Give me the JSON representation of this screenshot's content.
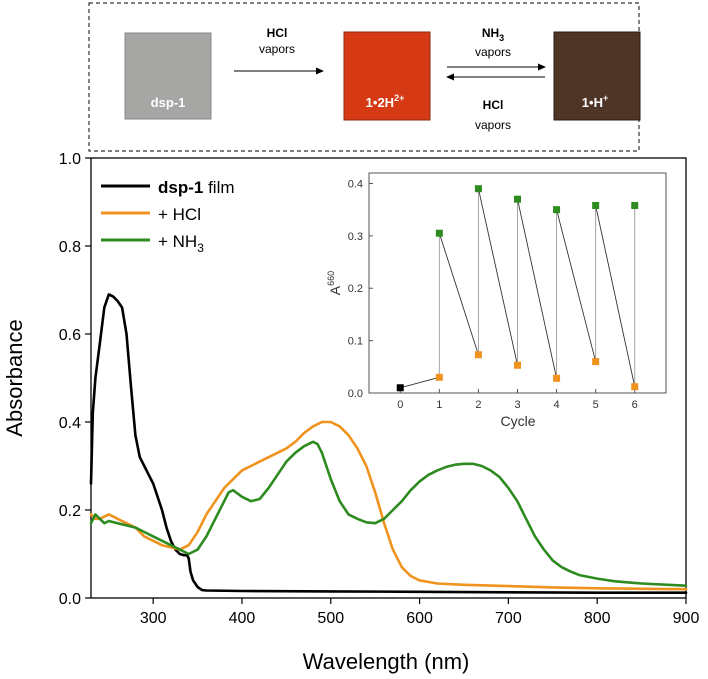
{
  "scheme": {
    "film_labels": [
      "dsp-1",
      "1•2H",
      "1•H"
    ],
    "film_label_superscripts": [
      "",
      "2+",
      "+"
    ],
    "film_colors": [
      "#a6a6a4",
      "#d63a14",
      "#4e3526"
    ],
    "step1": {
      "reagent": "HCl",
      "word": "vapors"
    },
    "step2_forward": {
      "reagent": "NH",
      "subscript": "3",
      "word": "vapors"
    },
    "step2_back": {
      "reagent": "HCl",
      "word": "vapors"
    }
  },
  "chart_data": [
    {
      "type": "line",
      "title": "",
      "xlabel": "Wavelength (nm)",
      "ylabel": "Absorbance",
      "xlim": [
        230,
        900
      ],
      "ylim": [
        0,
        1.0
      ],
      "xticks": [
        "300",
        "400",
        "500",
        "600",
        "700",
        "800",
        "900"
      ],
      "yticks": [
        "0.0",
        "0.2",
        "0.4",
        "0.6",
        "0.8",
        "1.0"
      ],
      "legend_position": "top-left",
      "series": [
        {
          "name": "dsp-1 film",
          "name_bold": "dsp-1",
          "name_rest": " film",
          "name_sub": "",
          "color": "#000000",
          "x": [
            230,
            232,
            235,
            240,
            245,
            250,
            255,
            260,
            265,
            270,
            275,
            280,
            285,
            290,
            295,
            300,
            305,
            310,
            315,
            320,
            325,
            330,
            335,
            338,
            340,
            342,
            345,
            350,
            355,
            360,
            400,
            500,
            600,
            700,
            800,
            900
          ],
          "y": [
            0.26,
            0.42,
            0.5,
            0.58,
            0.66,
            0.69,
            0.685,
            0.675,
            0.66,
            0.6,
            0.48,
            0.37,
            0.32,
            0.3,
            0.28,
            0.26,
            0.23,
            0.2,
            0.16,
            0.13,
            0.11,
            0.1,
            0.097,
            0.098,
            0.09,
            0.06,
            0.04,
            0.025,
            0.018,
            0.017,
            0.016,
            0.015,
            0.014,
            0.013,
            0.012,
            0.012
          ]
        },
        {
          "name": "+ HCl",
          "name_bold": "",
          "name_rest": "+ HCl",
          "name_sub": "",
          "color": "#f0931e",
          "x": [
            230,
            235,
            240,
            245,
            250,
            255,
            260,
            270,
            280,
            290,
            300,
            310,
            320,
            330,
            340,
            350,
            360,
            370,
            380,
            390,
            400,
            410,
            420,
            430,
            440,
            450,
            460,
            470,
            480,
            490,
            500,
            510,
            520,
            530,
            540,
            550,
            560,
            570,
            580,
            590,
            600,
            620,
            650,
            700,
            750,
            800,
            850,
            900
          ],
          "y": [
            0.19,
            0.18,
            0.18,
            0.185,
            0.19,
            0.185,
            0.18,
            0.17,
            0.16,
            0.14,
            0.13,
            0.12,
            0.115,
            0.11,
            0.12,
            0.15,
            0.19,
            0.22,
            0.25,
            0.27,
            0.29,
            0.3,
            0.31,
            0.32,
            0.33,
            0.34,
            0.355,
            0.375,
            0.39,
            0.4,
            0.4,
            0.39,
            0.37,
            0.34,
            0.3,
            0.24,
            0.17,
            0.11,
            0.07,
            0.05,
            0.04,
            0.033,
            0.03,
            0.027,
            0.024,
            0.022,
            0.021,
            0.02
          ]
        },
        {
          "name": "+ NH3",
          "name_bold": "",
          "name_rest": "+ NH",
          "name_sub": "3",
          "color": "#2e8b20",
          "x": [
            230,
            235,
            240,
            245,
            250,
            260,
            270,
            280,
            290,
            300,
            310,
            320,
            330,
            340,
            350,
            360,
            370,
            380,
            385,
            390,
            400,
            410,
            420,
            430,
            440,
            450,
            460,
            470,
            480,
            485,
            490,
            500,
            510,
            520,
            530,
            540,
            550,
            560,
            570,
            580,
            590,
            600,
            610,
            620,
            630,
            640,
            650,
            660,
            670,
            680,
            690,
            700,
            710,
            720,
            730,
            740,
            750,
            760,
            770,
            780,
            800,
            820,
            850,
            900
          ],
          "y": [
            0.17,
            0.19,
            0.18,
            0.17,
            0.175,
            0.17,
            0.165,
            0.16,
            0.15,
            0.14,
            0.13,
            0.12,
            0.11,
            0.1,
            0.11,
            0.14,
            0.18,
            0.22,
            0.24,
            0.245,
            0.23,
            0.22,
            0.225,
            0.25,
            0.28,
            0.31,
            0.33,
            0.345,
            0.355,
            0.35,
            0.33,
            0.27,
            0.22,
            0.19,
            0.18,
            0.172,
            0.17,
            0.18,
            0.2,
            0.22,
            0.245,
            0.265,
            0.28,
            0.29,
            0.298,
            0.303,
            0.305,
            0.305,
            0.3,
            0.29,
            0.275,
            0.25,
            0.22,
            0.18,
            0.14,
            0.11,
            0.085,
            0.07,
            0.06,
            0.052,
            0.044,
            0.038,
            0.033,
            0.028
          ]
        }
      ]
    },
    {
      "type": "line",
      "title": "",
      "xlabel": "Cycle",
      "ylabel": "A",
      "ylabel_sup": "660",
      "xlim": [
        -0.8,
        6.8
      ],
      "ylim": [
        0,
        0.42
      ],
      "xticks": [
        "0",
        "1",
        "2",
        "3",
        "4",
        "5",
        "6"
      ],
      "yticks": [
        "0.0",
        "0.1",
        "0.2",
        "0.3",
        "0.4"
      ],
      "marker_colors": {
        "initial": "#000000",
        "hcl": "#f0931e",
        "nh3": "#2e8b20"
      },
      "initial_point": {
        "x": 0,
        "y": 0.01
      },
      "nh3_points": {
        "x": [
          1,
          2,
          3,
          4,
          5,
          6
        ],
        "y": [
          0.305,
          0.39,
          0.37,
          0.35,
          0.358,
          0.358
        ]
      },
      "hcl_points": {
        "x": [
          1,
          2,
          3,
          4,
          5,
          6
        ],
        "y": [
          0.03,
          0.073,
          0.053,
          0.028,
          0.06,
          0.012
        ]
      }
    }
  ]
}
